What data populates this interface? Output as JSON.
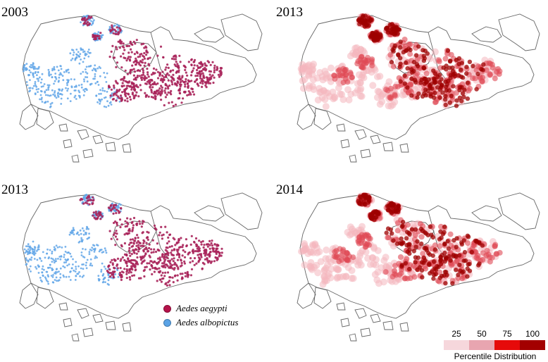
{
  "panels": [
    {
      "id": "top-left",
      "label": "2003",
      "kind": "species"
    },
    {
      "id": "top-right",
      "label": "2013",
      "kind": "density"
    },
    {
      "id": "bottom-left",
      "label": "2013",
      "kind": "species"
    },
    {
      "id": "bottom-right",
      "label": "2014",
      "kind": "density"
    }
  ],
  "species_legend": [
    {
      "name": "Aedes aegypti",
      "color": "#b5124a"
    },
    {
      "name": "Aedes albopictus",
      "color": "#5aa3e6"
    }
  ],
  "percentile_legend": {
    "title": "Percentile Distribution",
    "ticks": [
      "25",
      "50",
      "75",
      "100"
    ],
    "colors": [
      "#f6d7dc",
      "#e8a5b0",
      "#e60a0a",
      "#a30000"
    ]
  },
  "colors": {
    "aegypti": "#a8235a",
    "albopictus": "#62a6e8",
    "density_light": "#f4b6bd",
    "density_mid": "#e04a55",
    "density_dark": "#9e0000",
    "outline": "#666666"
  }
}
